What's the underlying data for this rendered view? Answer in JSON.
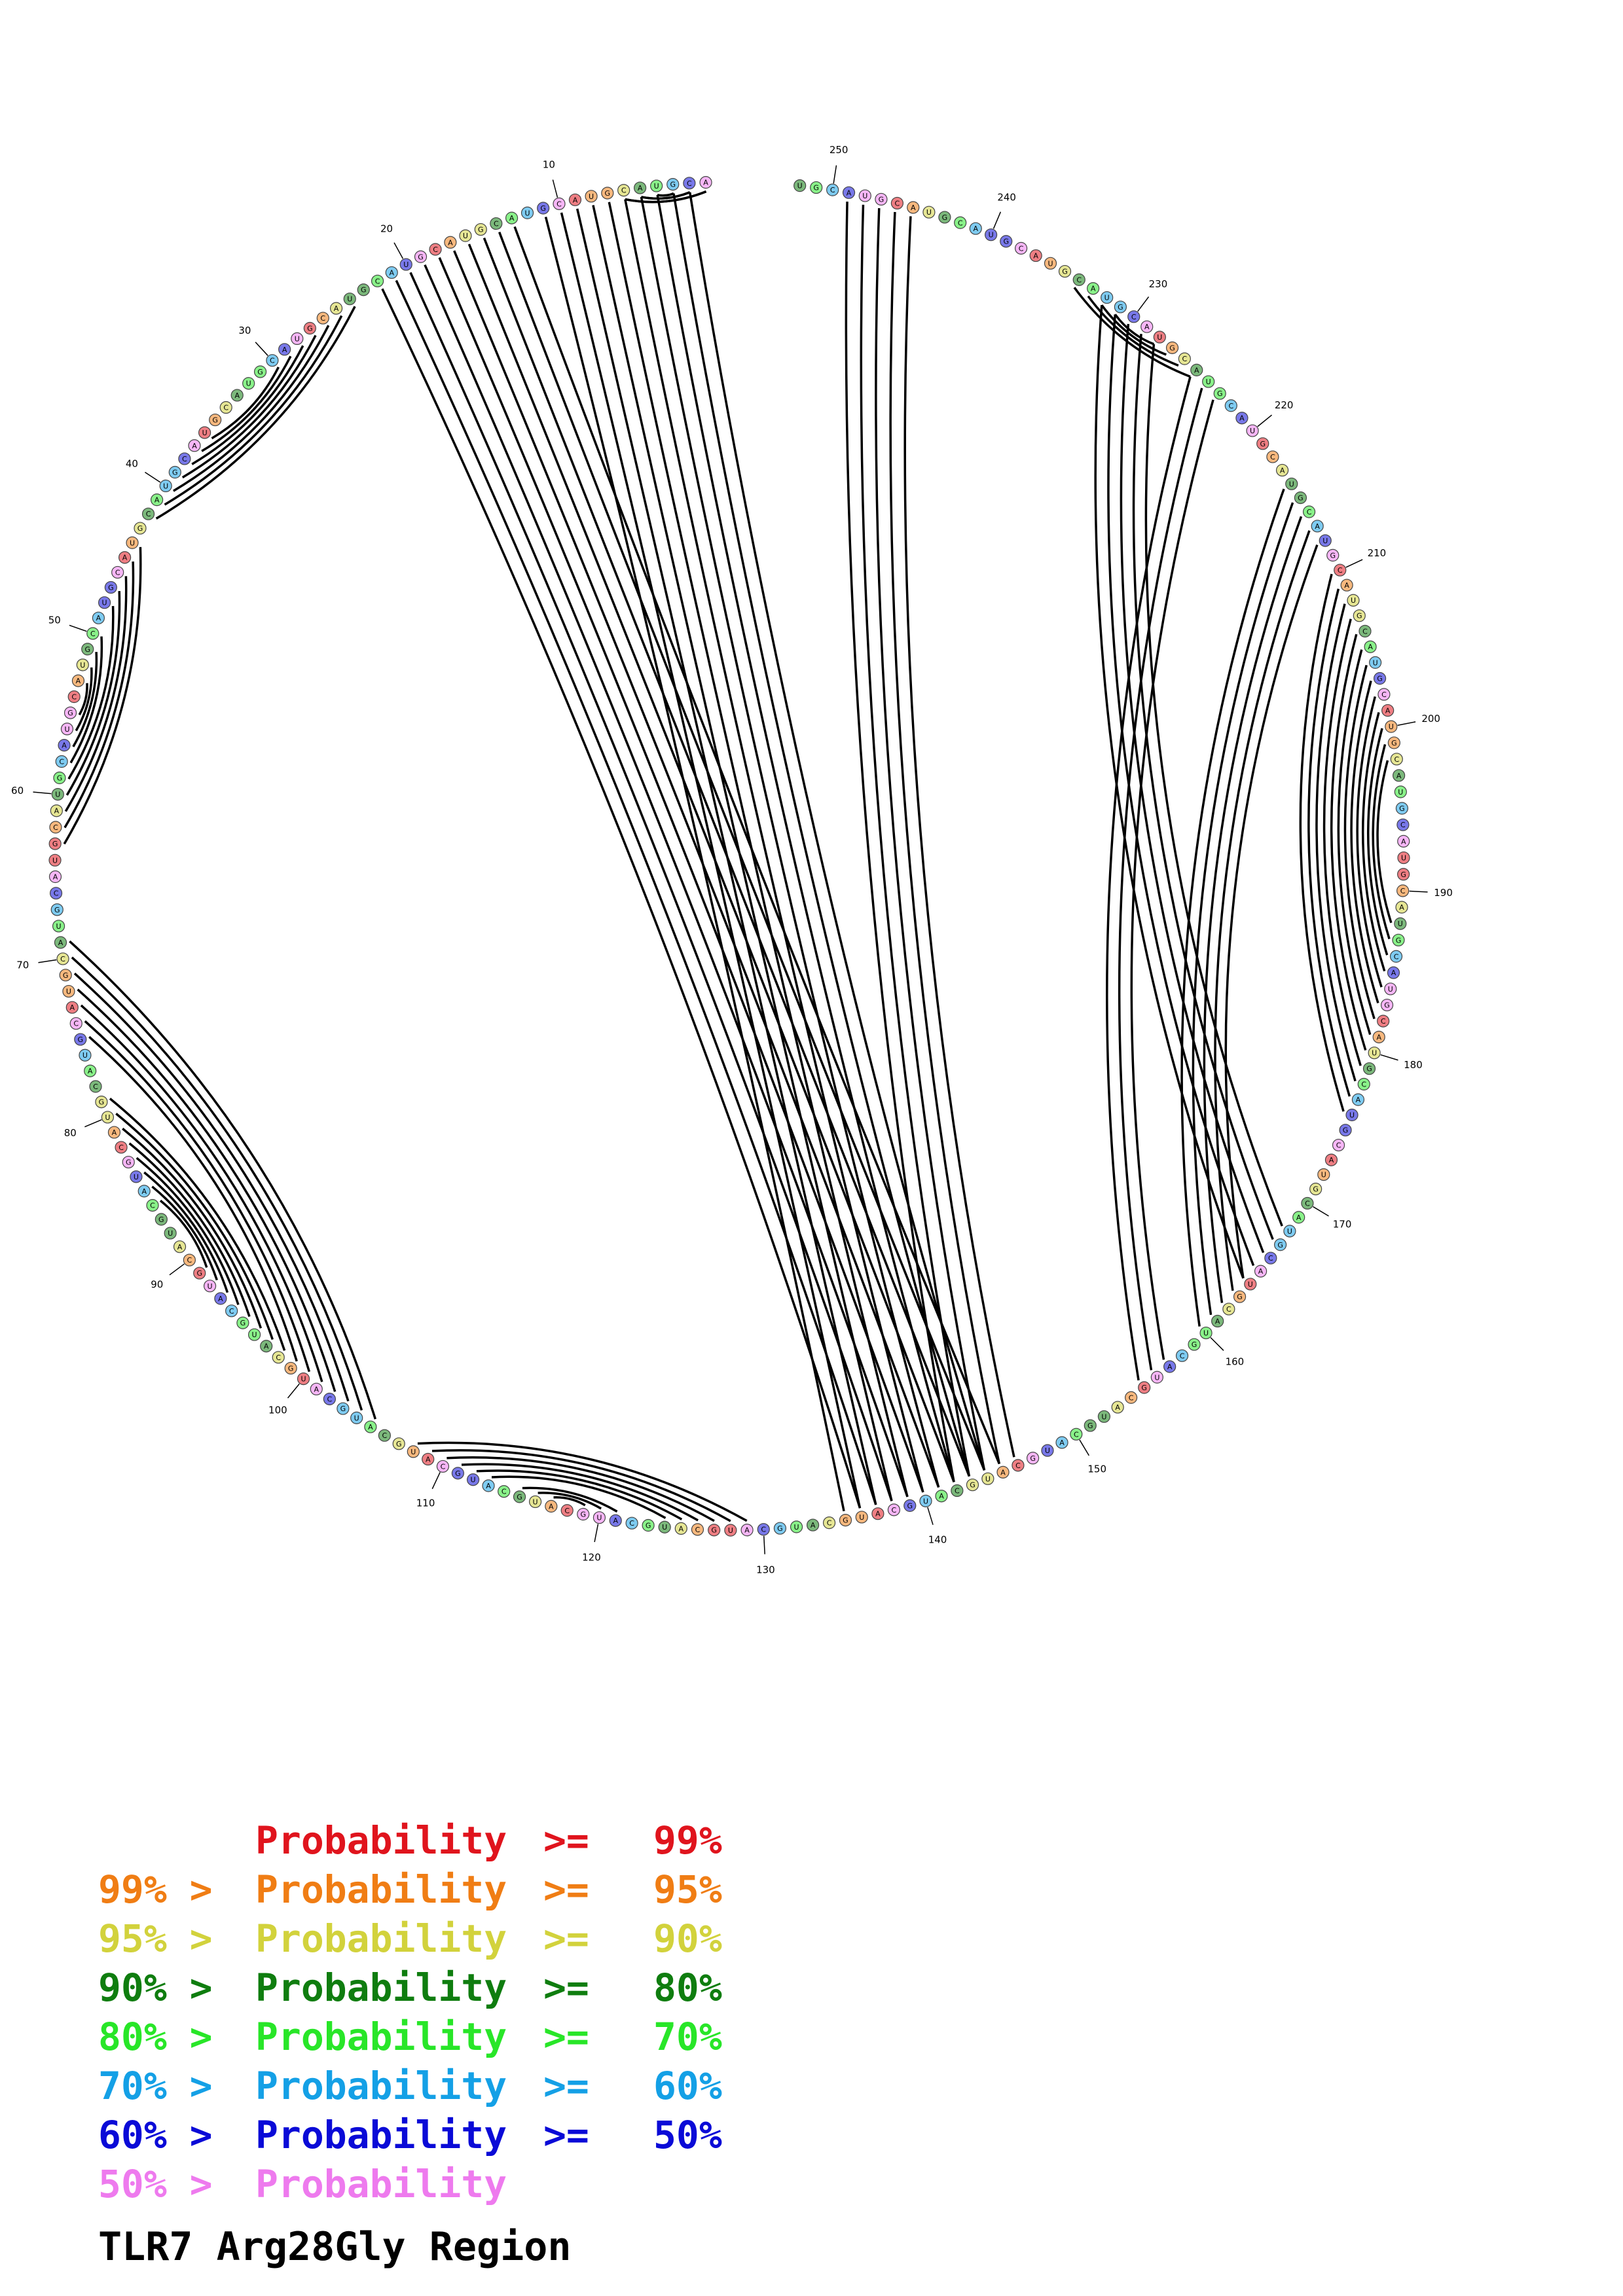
{
  "title": "TLR7 Arg28Gly Region",
  "diagram": {
    "type": "circular-rna-secondary-structure",
    "sequence_length": 252,
    "position_labels": [
      "10",
      "20",
      "30",
      "40",
      "50",
      "60",
      "70",
      "80",
      "90",
      "100",
      "110",
      "120",
      "130",
      "140",
      "150",
      "160",
      "170",
      "180",
      "190",
      "200",
      "210",
      "220",
      "230",
      "240",
      "250"
    ],
    "arc_color": "#000000",
    "arcs": [
      {
        "from": 1,
        "to": [
          1,
          6
        ],
        "comment": ""
      },
      {
        "from": 13,
        "to": [
          134,
          145
        ]
      },
      {
        "from": [
          24,
          30
        ],
        "to": [
          36,
          42
        ]
      },
      {
        "from": [
          44,
          48
        ],
        "to": [
          59,
          63
        ]
      },
      {
        "from": [
          50,
          53
        ],
        "to": [
          55,
          58
        ]
      },
      {
        "from": [
          69,
          75
        ],
        "to": [
          99,
          105
        ]
      },
      {
        "from": [
          79,
          86
        ],
        "to": [
          91,
          98
        ]
      },
      {
        "from": [
          108,
          113
        ],
        "to": [
          124,
          129
        ]
      },
      {
        "from": [
          115,
          117
        ],
        "to": [
          119,
          121
        ]
      },
      {
        "from": [
          155,
          157
        ],
        "to": [
          223,
          225
        ]
      },
      {
        "from": [
          160,
          164
        ],
        "to": [
          212,
          216
        ]
      },
      {
        "from": [
          176,
          188
        ],
        "to": [
          197,
          210
        ]
      },
      {
        "from": [
          164,
          168
        ],
        "to": [
          227,
          232
        ]
      },
      {
        "from": [
          225,
          228
        ],
        "to": [
          231,
          234
        ]
      },
      {
        "from": [
          142,
          146
        ],
        "to": [
          245,
          249
        ]
      },
      {
        "from": [
          135,
          144
        ],
        "to": [
          2,
          11
        ]
      }
    ]
  },
  "legend": [
    {
      "prefix": "",
      "word": "Probability",
      "op": ">=",
      "threshold": "99%",
      "color": "#e0141d"
    },
    {
      "prefix": "99% >",
      "word": "Probability",
      "op": ">=",
      "threshold": "95%",
      "color": "#f07d14"
    },
    {
      "prefix": "95% >",
      "word": "Probability",
      "op": ">=",
      "threshold": "90%",
      "color": "#d2d23c"
    },
    {
      "prefix": "90% >",
      "word": "Probability",
      "op": ">=",
      "threshold": "80%",
      "color": "#0f7d0f"
    },
    {
      "prefix": "80% >",
      "word": "Probability",
      "op": ">=",
      "threshold": "70%",
      "color": "#28e628"
    },
    {
      "prefix": "70% >",
      "word": "Probability",
      "op": ">=",
      "threshold": "60%",
      "color": "#14a0e6"
    },
    {
      "prefix": "60% >",
      "word": "Probability",
      "op": ">=",
      "threshold": "50%",
      "color": "#0a0ad7"
    },
    {
      "prefix": "50% >",
      "word": "Probability",
      "op": "",
      "threshold": "",
      "color": "#ee7aee"
    }
  ],
  "colors": {
    "p99": "#e0141d",
    "p95": "#f07d14",
    "p90": "#d2d23c",
    "p80": "#0f7d0f",
    "p70": "#28e628",
    "p60": "#14a0e6",
    "p50": "#0a0ad7",
    "plow": "#ee7aee"
  }
}
